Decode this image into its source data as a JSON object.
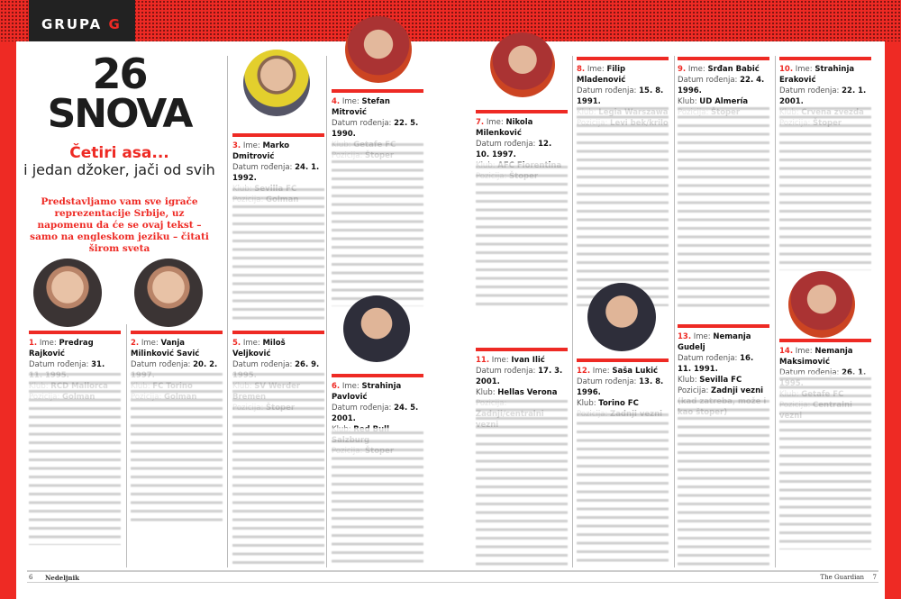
{
  "header": {
    "section_word": "GRUPA",
    "section_letter": "G"
  },
  "headline": {
    "line1": "26",
    "line2": "SNOVA",
    "subtitle_red": "Četiri asa...",
    "subtitle_black": "i jedan džoker, jači od svih",
    "lead": "Predstavljamo vam sve igrače reprezentacije Srbije, uz napomenu da će se ovaj tekst – samo na engleskom jeziku – čitati širom sveta"
  },
  "labels": {
    "name": "Ime:",
    "dob": "Datum rođenja:",
    "club": "Klub:",
    "position": "Pozicija:"
  },
  "players": [
    {
      "num": "1.",
      "name": "Predrag Rajković",
      "dob": "31. 11. 1995.",
      "club": "RCD Mallorca",
      "position": "Golman"
    },
    {
      "num": "2.",
      "name": "Vanja Milinković Savić",
      "dob": "20. 2. 1997.",
      "club": "FC Torino",
      "position": "Golman"
    },
    {
      "num": "3.",
      "name": "Marko Dmitrović",
      "dob": "24. 1. 1992.",
      "club": "Sevilla FC",
      "position": "Golman"
    },
    {
      "num": "4.",
      "name": "Stefan Mitrović",
      "dob": "22. 5. 1990.",
      "club": "Getafe FC",
      "position": "Štoper"
    },
    {
      "num": "5.",
      "name": "Miloš Veljković",
      "dob": "26. 9. 1995.",
      "club": "SV Werder Bremen",
      "position": "Štoper"
    },
    {
      "num": "6.",
      "name": "Strahinja Pavlović",
      "dob": "24. 5. 2001.",
      "club": "Red Bull Salzburg",
      "position": "Štoper"
    },
    {
      "num": "7.",
      "name": "Nikola Milenković",
      "dob": "12. 10. 1997.",
      "club": "AFC Fiorentina",
      "position": "Štoper"
    },
    {
      "num": "8.",
      "name": "Filip Mladenović",
      "dob": "15. 8. 1991.",
      "club": "Legia Warszawa",
      "position": "Levi bek/krilo"
    },
    {
      "num": "9.",
      "name": "Srđan Babić",
      "dob": "22. 4. 1996.",
      "club": "UD Almería",
      "position": "Štoper"
    },
    {
      "num": "10.",
      "name": "Strahinja Eraković",
      "dob": "22. 1. 2001.",
      "club": "Crvena zvezda",
      "position": "Štoper"
    },
    {
      "num": "11.",
      "name": "Ivan Ilić",
      "dob": "17. 3. 2001.",
      "club": "Hellas Verona",
      "position": "Zadnji/centralni vezni"
    },
    {
      "num": "12.",
      "name": "Saša Lukić",
      "dob": "13. 8. 1996.",
      "club": "Torino FC",
      "position": "Zadnji vezni"
    },
    {
      "num": "13.",
      "name": "Nemanja Gudelj",
      "dob": "16. 11. 1991.",
      "club": "Sevilla FC",
      "position": "Zadnji vezni (kad zatreba, može i kao štoper)"
    },
    {
      "num": "14.",
      "name": "Nemanja Maksimović",
      "dob": "26. 1. 1995.",
      "club": "Getafe FC",
      "position": "Centralni vezni"
    }
  ],
  "footer": {
    "left_page": "6",
    "left_brand": "Nedeljnik",
    "right_brand": "The Guardian",
    "right_page": "7"
  },
  "colors": {
    "accent": "#ee2a24",
    "dark": "#222222"
  }
}
